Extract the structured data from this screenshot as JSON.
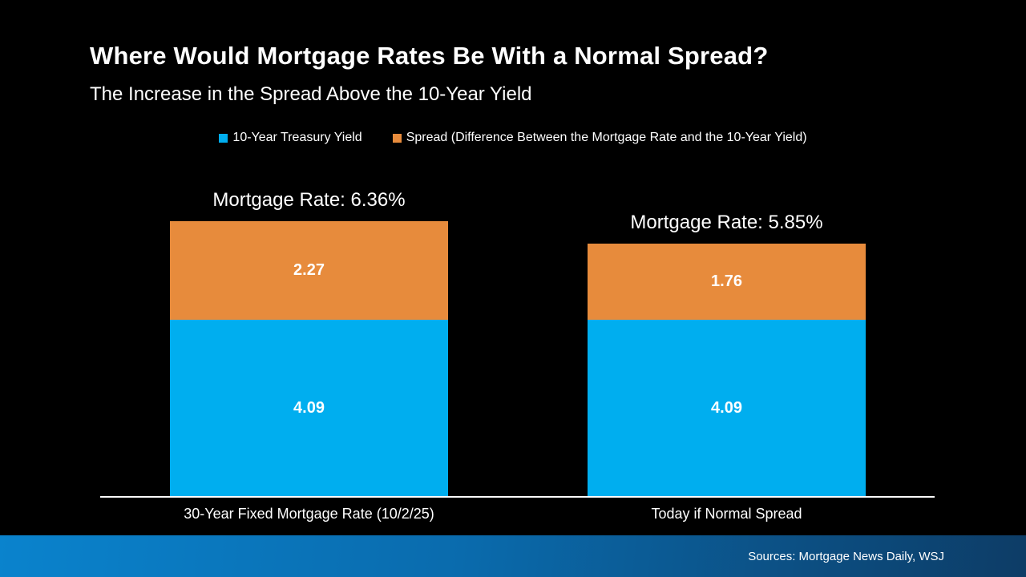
{
  "header": {
    "title": "Where Would Mortgage Rates Be With a Normal Spread?",
    "subtitle": "The Increase in the Spread Above the 10-Year Yield"
  },
  "chart_data": {
    "type": "bar",
    "stacked": true,
    "categories": [
      "30-Year Fixed Mortgage Rate (10/2/25)",
      "Today if Normal Spread"
    ],
    "series": [
      {
        "name": "10-Year Treasury Yield",
        "color": "#00AEEF",
        "values": [
          4.09,
          4.09
        ]
      },
      {
        "name": "Spread (Difference Between the Mortgage Rate and the 10-Year Yield)",
        "color": "#E78B3C",
        "values": [
          2.27,
          1.76
        ]
      }
    ],
    "totals": [
      6.36,
      5.85
    ],
    "annotations": [
      "Mortgage Rate: 6.36%",
      "Mortgage Rate: 5.85%"
    ],
    "ylim": [
      0,
      6.36
    ],
    "legend_position": "top",
    "grid": false,
    "value_label_format": "0.00"
  },
  "footer": {
    "sources": "Sources: Mortgage News Daily, WSJ"
  },
  "colors": {
    "background_top": "#041C26",
    "background_mid": "#052836",
    "background_bottom": "#0A3151",
    "bar_blue": "#00AEEF",
    "bar_orange": "#E78B3C",
    "footer_left": "#0A83CD",
    "footer_right": "#0D3C66",
    "text": "#FFFFFF"
  }
}
